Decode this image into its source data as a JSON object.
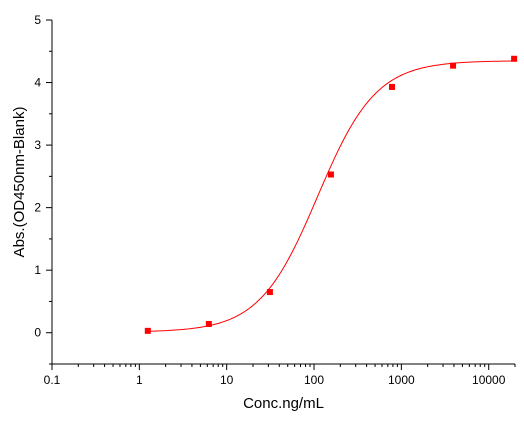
{
  "chart_data": {
    "type": "scatter",
    "title": "",
    "xlabel": "Conc.ng/mL",
    "ylabel": "Abs.(OD450nm-Blank)",
    "x_scale": "log",
    "xlim": [
      0.1,
      20000
    ],
    "ylim": [
      -0.5,
      5
    ],
    "x_ticks": [
      0.1,
      1,
      10,
      100,
      1000,
      10000
    ],
    "x_tick_labels": [
      "0.1",
      "1",
      "10",
      "100",
      "1000",
      "10000"
    ],
    "y_ticks": [
      0,
      1,
      2,
      3,
      4,
      5
    ],
    "y_tick_labels": [
      "0",
      "1",
      "2",
      "3",
      "4",
      "5"
    ],
    "grid": false,
    "legend": "none",
    "series": [
      {
        "x": [
          1.25,
          6.25,
          31.25,
          156.25,
          781.25,
          3906.25,
          19531.25
        ],
        "y": [
          0.03,
          0.14,
          0.65,
          2.53,
          3.93,
          4.27,
          4.38
        ],
        "marker": "square",
        "color": "#ff0000",
        "fit": "4PL",
        "fit_params": {
          "bottom": 0.01,
          "top": 4.35,
          "ec50": 110,
          "hill": 1.3
        }
      }
    ]
  }
}
